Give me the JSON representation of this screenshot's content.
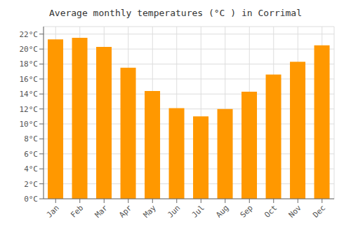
{
  "chart_data": {
    "type": "bar",
    "title": "Average monthly temperatures (°C ) in Corrimal",
    "categories": [
      "Jan",
      "Feb",
      "Mar",
      "Apr",
      "May",
      "Jun",
      "Jul",
      "Aug",
      "Sep",
      "Oct",
      "Nov",
      "Dec"
    ],
    "values": [
      21.3,
      21.5,
      20.3,
      17.5,
      14.4,
      12.1,
      11.0,
      12.0,
      14.3,
      16.6,
      18.3,
      20.5
    ],
    "color": "#FF9800",
    "ylim": [
      0,
      23
    ],
    "yticks": [
      {
        "value": 0,
        "label": "0°C"
      },
      {
        "value": 2,
        "label": "2°C"
      },
      {
        "value": 4,
        "label": "4°C"
      },
      {
        "value": 6,
        "label": "6°C"
      },
      {
        "value": 8,
        "label": "8°C"
      },
      {
        "value": 10,
        "label": "10°C"
      },
      {
        "value": 12,
        "label": "12°C"
      },
      {
        "value": 14,
        "label": "14°C"
      },
      {
        "value": 16,
        "label": "16°C"
      },
      {
        "value": 18,
        "label": "18°C"
      },
      {
        "value": 20,
        "label": "20°C"
      },
      {
        "value": 22,
        "label": "22°C"
      }
    ],
    "grid": true
  }
}
